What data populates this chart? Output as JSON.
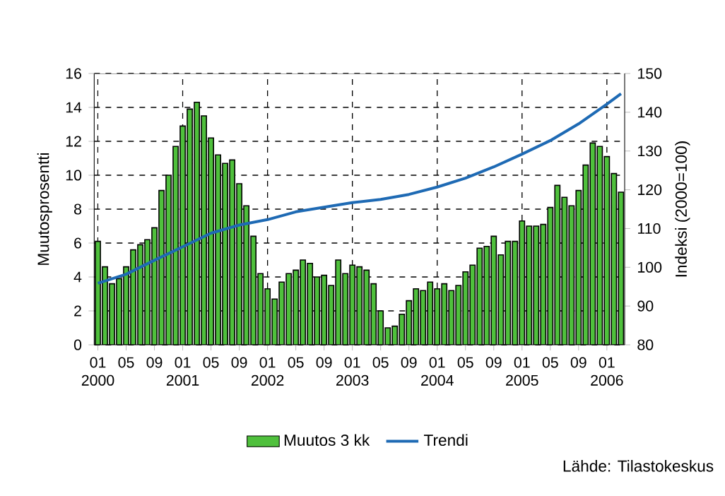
{
  "chart_data": {
    "type": "bar",
    "x": [
      "2000-01",
      "2000-02",
      "2000-03",
      "2000-04",
      "2000-05",
      "2000-06",
      "2000-07",
      "2000-08",
      "2000-09",
      "2000-10",
      "2000-11",
      "2000-12",
      "2001-01",
      "2001-02",
      "2001-03",
      "2001-04",
      "2001-05",
      "2001-06",
      "2001-07",
      "2001-08",
      "2001-09",
      "2001-10",
      "2001-11",
      "2001-12",
      "2002-01",
      "2002-02",
      "2002-03",
      "2002-04",
      "2002-05",
      "2002-06",
      "2002-07",
      "2002-08",
      "2002-09",
      "2002-10",
      "2002-11",
      "2002-12",
      "2003-01",
      "2003-02",
      "2003-03",
      "2003-04",
      "2003-05",
      "2003-06",
      "2003-07",
      "2003-08",
      "2003-09",
      "2003-10",
      "2003-11",
      "2003-12",
      "2004-01",
      "2004-02",
      "2004-03",
      "2004-04",
      "2004-05",
      "2004-06",
      "2004-07",
      "2004-08",
      "2004-09",
      "2004-10",
      "2004-11",
      "2004-12",
      "2005-01",
      "2005-02",
      "2005-03",
      "2005-04",
      "2005-05",
      "2005-06",
      "2005-07",
      "2005-08",
      "2005-09",
      "2005-10",
      "2005-11",
      "2005-12",
      "2006-01",
      "2006-02",
      "2006-03"
    ],
    "series": [
      {
        "name": "Muutos 3 kk",
        "color": "#4fc03c",
        "values": [
          6.1,
          4.6,
          3.6,
          3.9,
          4.6,
          5.6,
          5.9,
          6.2,
          6.9,
          9.1,
          10.0,
          11.7,
          12.9,
          13.9,
          14.3,
          13.5,
          12.2,
          11.2,
          10.7,
          10.9,
          9.5,
          8.2,
          6.4,
          4.2,
          3.3,
          2.7,
          3.7,
          4.2,
          4.4,
          5.0,
          4.8,
          4.0,
          4.1,
          3.5,
          5.0,
          4.2,
          4.7,
          4.6,
          4.4,
          3.6,
          2.0,
          1.0,
          1.1,
          1.8,
          2.6,
          3.3,
          3.2,
          3.7,
          3.3,
          3.6,
          3.2,
          3.5,
          4.3,
          4.7,
          5.7,
          5.8,
          6.4,
          5.3,
          6.1,
          6.1,
          7.3,
          7.0,
          7.0,
          7.1,
          8.1,
          9.4,
          8.7,
          8.2,
          9.1,
          10.6,
          11.9,
          11.7,
          11.1,
          10.1,
          9.0
        ]
      },
      {
        "name": "Trendi",
        "type": "line",
        "axis": "y2",
        "color": "#1e6ab4",
        "x": [
          "2000-01",
          "2000-05",
          "2000-09",
          "2001-01",
          "2001-05",
          "2001-09",
          "2002-01",
          "2002-05",
          "2002-09",
          "2003-01",
          "2003-05",
          "2003-09",
          "2004-01",
          "2004-05",
          "2004-09",
          "2005-01",
          "2005-05",
          "2005-09",
          "2006-01",
          "2006-03"
        ],
        "values": [
          95.9,
          98.2,
          101.8,
          105.3,
          108.8,
          110.9,
          112.3,
          114.3,
          115.5,
          116.7,
          117.5,
          118.8,
          120.7,
          123.0,
          125.9,
          129.2,
          132.7,
          137.0,
          142.1,
          144.8
        ]
      }
    ],
    "xlim": [
      "1999-12-16",
      "2006-03-17"
    ],
    "xticks": [
      {
        "value": "2000-01",
        "label": "01 2000"
      },
      {
        "value": "2000-05",
        "label": "05"
      },
      {
        "value": "2000-09",
        "label": "09"
      },
      {
        "value": "2001-01",
        "label": "01 2001"
      },
      {
        "value": "2001-05",
        "label": "05"
      },
      {
        "value": "2001-09",
        "label": "09"
      },
      {
        "value": "2002-01",
        "label": "01 2002"
      },
      {
        "value": "2002-05",
        "label": "05"
      },
      {
        "value": "2002-09",
        "label": "09"
      },
      {
        "value": "2003-01",
        "label": "01 2003"
      },
      {
        "value": "2003-05",
        "label": "05"
      },
      {
        "value": "2003-09",
        "label": "09"
      },
      {
        "value": "2004-01",
        "label": "01 2004"
      },
      {
        "value": "2004-05",
        "label": "05"
      },
      {
        "value": "2004-09",
        "label": "09"
      },
      {
        "value": "2005-01",
        "label": "01 2005"
      },
      {
        "value": "2005-05",
        "label": "05"
      },
      {
        "value": "2005-09",
        "label": "09"
      },
      {
        "value": "2006-01",
        "label": "01 2006"
      }
    ],
    "ylim": [
      0,
      16
    ],
    "yticks": [
      0,
      2,
      4,
      6,
      8,
      10,
      12,
      14,
      16
    ],
    "y2lim": [
      80,
      150
    ],
    "y2ticks": [
      80,
      90,
      100,
      110,
      120,
      130,
      140,
      150
    ],
    "ylabel": "Muutosprosentti",
    "y2label": "Indeksi (2000=100)",
    "grid": true,
    "legend": "bottom",
    "annotations": [
      "Lähde: Tilastokeskus"
    ]
  }
}
